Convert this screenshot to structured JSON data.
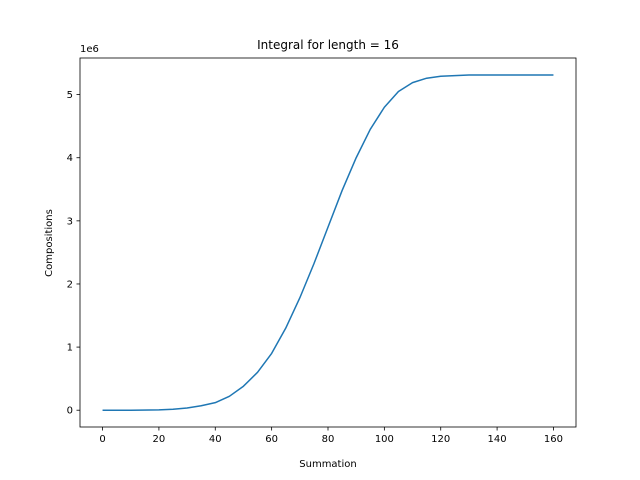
{
  "chart_data": {
    "type": "line",
    "title": "Integral for length = 16",
    "xlabel": "Summation",
    "ylabel": "Compositions",
    "y_offset_label": "1e6",
    "xlim": [
      -8,
      168
    ],
    "ylim": [
      -0.266,
      5.58
    ],
    "xticks": [
      "0",
      "20",
      "40",
      "60",
      "80",
      "100",
      "120",
      "140",
      "160"
    ],
    "yticks": [
      "0",
      "1",
      "2",
      "3",
      "4",
      "5"
    ],
    "grid": false,
    "line_color": "#1f77b4",
    "series": [
      {
        "name": "",
        "x": [
          0,
          10,
          20,
          25,
          30,
          35,
          40,
          45,
          50,
          55,
          60,
          65,
          70,
          75,
          80,
          85,
          90,
          95,
          100,
          105,
          110,
          115,
          120,
          125,
          130,
          135,
          140,
          150,
          160
        ],
        "y": [
          0.0,
          0.0,
          0.005,
          0.015,
          0.035,
          0.07,
          0.12,
          0.22,
          0.38,
          0.6,
          0.9,
          1.3,
          1.78,
          2.32,
          2.9,
          3.48,
          4.0,
          4.45,
          4.8,
          5.05,
          5.19,
          5.26,
          5.29,
          5.3,
          5.31,
          5.31,
          5.31,
          5.31,
          5.31
        ]
      }
    ]
  }
}
